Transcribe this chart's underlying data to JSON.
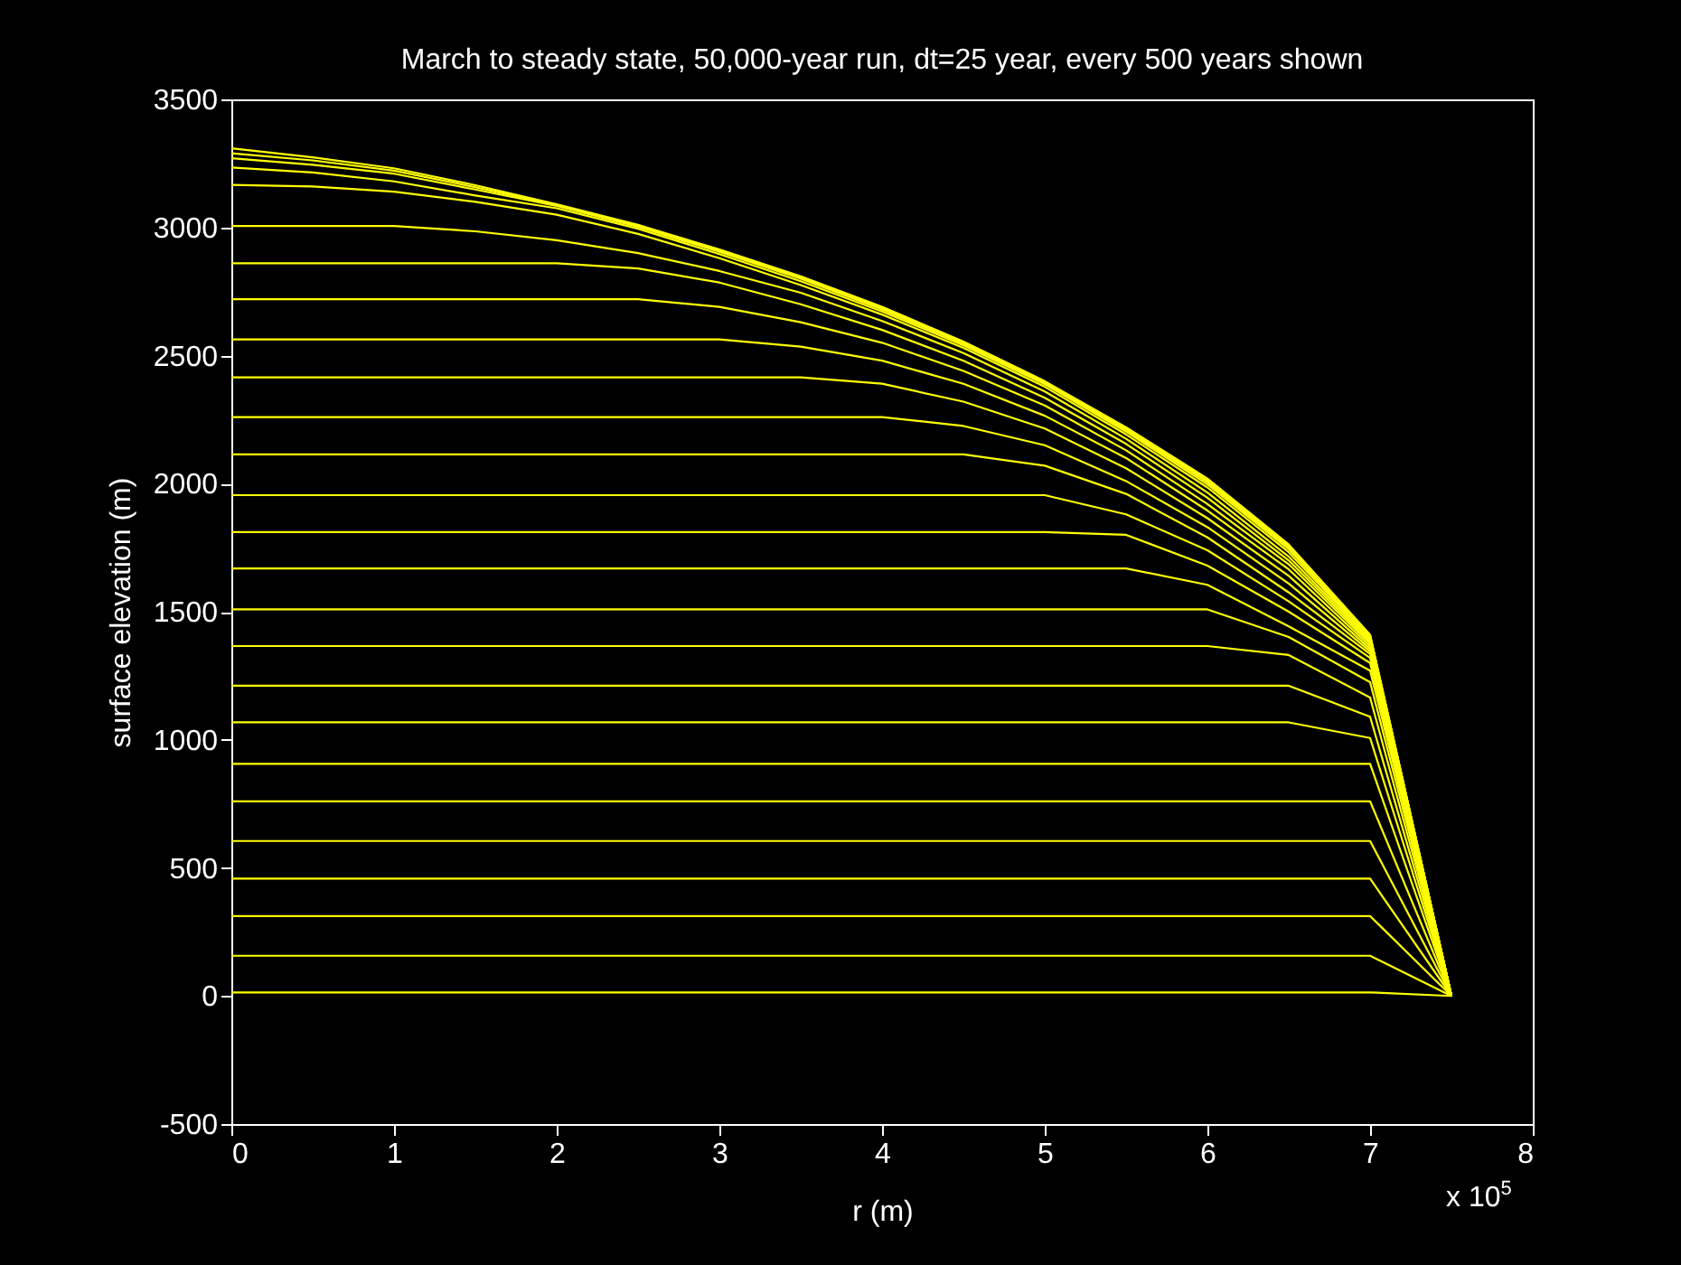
{
  "chart_data": {
    "type": "line",
    "title": "March to steady state, 50,000-year run, dt=25 year, every 500 years shown",
    "xlabel": "r (m)",
    "ylabel": "surface elevation (m)",
    "annotations": [
      "x 10$^{5}$"
    ],
    "xlim": [
      0,
      8
    ],
    "xticks": [
      0,
      1,
      2,
      3,
      4,
      5,
      6,
      7,
      8
    ],
    "ylim": [
      -500,
      3500
    ],
    "yticks": [
      -500,
      0,
      500,
      1000,
      1500,
      2000,
      2500,
      3000,
      3500
    ],
    "grid": false,
    "legend": false,
    "series": [
      {
        "color": "#ffff00",
        "x": [
          0,
          7,
          7.5
        ],
        "values": [
          14,
          14,
          0
        ]
      },
      {
        "color": "#ffff00",
        "x": [
          0,
          7,
          7.5
        ],
        "values": [
          157,
          157,
          0
        ]
      },
      {
        "color": "#ffff00",
        "x": [
          0,
          7,
          7.5
        ],
        "values": [
          312,
          312,
          0
        ]
      },
      {
        "color": "#ffff00",
        "x": [
          0,
          7,
          7.5
        ],
        "values": [
          458,
          458,
          0
        ]
      },
      {
        "color": "#ffff00",
        "x": [
          0,
          7,
          7.5
        ],
        "values": [
          605,
          605,
          0
        ]
      },
      {
        "color": "#ffff00",
        "x": [
          0,
          7,
          7.5
        ],
        "values": [
          760,
          760,
          0
        ]
      },
      {
        "color": "#ffff00",
        "x": [
          0,
          7,
          7.5
        ],
        "values": [
          906,
          906,
          0
        ]
      },
      {
        "color": "#ffff00",
        "x": [
          0,
          6.5,
          7,
          7.5
        ],
        "values": [
          1068,
          1068,
          1007,
          0
        ]
      },
      {
        "color": "#ffff00",
        "x": [
          0,
          6.5,
          7,
          7.5
        ],
        "values": [
          1211,
          1211,
          1090,
          0
        ]
      },
      {
        "color": "#ffff00",
        "x": [
          0,
          6,
          6.5,
          7,
          7.5
        ],
        "values": [
          1366,
          1366,
          1331,
          1165,
          0
        ]
      },
      {
        "color": "#ffff00",
        "x": [
          0,
          6,
          6.5,
          7,
          7.5
        ],
        "values": [
          1509,
          1509,
          1401,
          1225,
          0
        ]
      },
      {
        "color": "#ffff00",
        "x": [
          0,
          5.5,
          6,
          6.5,
          7,
          7.5
        ],
        "values": [
          1669,
          1669,
          1605,
          1443,
          1270,
          0
        ]
      },
      {
        "color": "#ffff00",
        "x": [
          0,
          5,
          5.5,
          6,
          6.5,
          7,
          7.5
        ],
        "values": [
          1811,
          1811,
          1800,
          1680,
          1500,
          1300,
          0
        ]
      },
      {
        "color": "#ffff00",
        "x": [
          0,
          5,
          5.5,
          6,
          6.5,
          7,
          7.5
        ],
        "values": [
          1955,
          1955,
          1880,
          1740,
          1540,
          1320,
          0
        ]
      },
      {
        "color": "#ffff00",
        "x": [
          0,
          4.5,
          5,
          5.5,
          6,
          6.5,
          7,
          7.5
        ],
        "values": [
          2114,
          2114,
          2070,
          1960,
          1790,
          1575,
          1335,
          0
        ]
      },
      {
        "color": "#ffff00",
        "x": [
          0,
          4,
          4.5,
          5,
          5.5,
          6,
          6.5,
          7,
          7.5
        ],
        "values": [
          2260,
          2260,
          2225,
          2150,
          2010,
          1830,
          1610,
          1345,
          0
        ]
      },
      {
        "color": "#ffff00",
        "x": [
          0,
          3.5,
          4,
          4.5,
          5,
          5.5,
          6,
          6.5,
          7,
          7.5
        ],
        "values": [
          2415,
          2415,
          2390,
          2320,
          2215,
          2060,
          1865,
          1640,
          1355,
          0
        ]
      },
      {
        "color": "#ffff00",
        "x": [
          0,
          3,
          3.5,
          4,
          4.5,
          5,
          5.5,
          6,
          6.5,
          7,
          7.5
        ],
        "values": [
          2563,
          2563,
          2535,
          2480,
          2390,
          2265,
          2100,
          1895,
          1665,
          1365,
          0
        ]
      },
      {
        "color": "#ffff00",
        "x": [
          0,
          2.5,
          3,
          3.5,
          4,
          4.5,
          5,
          5.5,
          6,
          6.5,
          7,
          7.5
        ],
        "values": [
          2720,
          2720,
          2690,
          2630,
          2550,
          2440,
          2305,
          2130,
          1920,
          1685,
          1375,
          0
        ]
      },
      {
        "color": "#ffff00",
        "x": [
          0,
          2,
          2.5,
          3,
          3.5,
          4,
          4.5,
          5,
          5.5,
          6,
          6.5,
          7,
          7.5
        ],
        "values": [
          2860,
          2860,
          2840,
          2785,
          2700,
          2600,
          2480,
          2335,
          2155,
          1945,
          1700,
          1383,
          0
        ]
      },
      {
        "color": "#ffff00",
        "x": [
          0,
          1,
          1.5,
          2,
          2.5,
          3,
          3.5,
          4,
          4.5,
          5,
          5.5,
          6,
          6.5,
          7,
          7.5
        ],
        "values": [
          3006,
          3006,
          2985,
          2950,
          2900,
          2830,
          2745,
          2635,
          2510,
          2360,
          2175,
          1965,
          1715,
          1390,
          0
        ]
      },
      {
        "color": "#ffff00",
        "x": [
          0,
          0.5,
          1,
          1.5,
          2,
          2.5,
          3,
          3.5,
          4,
          4.5,
          5,
          5.5,
          6,
          6.5,
          7,
          7.5
        ],
        "values": [
          3166,
          3160,
          3140,
          3100,
          3050,
          2975,
          2880,
          2775,
          2660,
          2530,
          2378,
          2192,
          1985,
          1732,
          1396,
          0
        ]
      },
      {
        "color": "#ffff00",
        "x": [
          0,
          0.5,
          1,
          1.5,
          2,
          2.5,
          3,
          3.5,
          4,
          4.5,
          5,
          5.5,
          6,
          6.5,
          7,
          7.5
        ],
        "values": [
          3234,
          3215,
          3180,
          3125,
          3075,
          2995,
          2896,
          2790,
          2672,
          2540,
          2388,
          2203,
          1997,
          1744,
          1400,
          0
        ]
      },
      {
        "color": "#ffff00",
        "x": [
          0,
          0.5,
          1,
          1.5,
          2,
          2.5,
          3,
          3.5,
          4,
          4.5,
          5,
          5.5,
          6,
          6.5,
          7,
          7.5
        ],
        "values": [
          3270,
          3245,
          3210,
          3148,
          3084,
          3003,
          2905,
          2800,
          2680,
          2547,
          2394,
          2210,
          2006,
          1752,
          1404,
          0
        ]
      },
      {
        "color": "#ffff00",
        "x": [
          0,
          0.5,
          1,
          1.5,
          2,
          2.5,
          3,
          3.5,
          4,
          4.5,
          5,
          5.5,
          6,
          6.5,
          7,
          7.5
        ],
        "values": [
          3290,
          3262,
          3222,
          3157,
          3088,
          3007,
          2910,
          2805,
          2686,
          2551,
          2397,
          2215,
          2013,
          1757,
          1407,
          0
        ]
      },
      {
        "color": "#ffff00",
        "x": [
          0,
          0.5,
          1,
          1.5,
          2,
          2.5,
          3,
          3.5,
          4,
          4.5,
          5,
          5.5,
          6,
          6.5,
          7,
          7.5
        ],
        "values": [
          3309,
          3274,
          3231,
          3165,
          3091,
          3010,
          2914,
          2809,
          2690,
          2555,
          2400,
          2220,
          2020,
          1762,
          1410,
          0
        ]
      }
    ]
  }
}
